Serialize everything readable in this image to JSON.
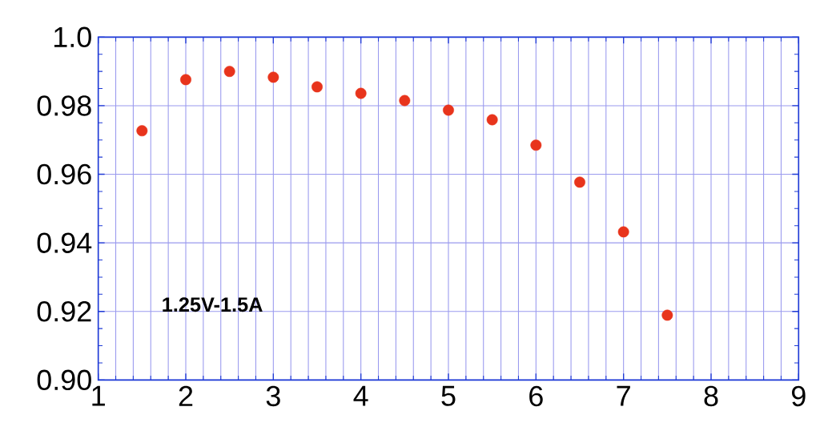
{
  "chart_data": {
    "type": "scatter",
    "x": [
      1.5,
      2,
      2.5,
      3,
      3.5,
      4,
      4.5,
      5,
      5.5,
      6,
      6.5,
      7,
      7.5
    ],
    "values": [
      0.9727,
      0.9876,
      0.99,
      0.9883,
      0.9855,
      0.9836,
      0.9815,
      0.9787,
      0.9759,
      0.9685,
      0.9577,
      0.9432,
      0.9189
    ],
    "color": "#e8341c",
    "xlim": [
      1,
      9
    ],
    "xticks": [
      1,
      2,
      3,
      4,
      5,
      6,
      7,
      8,
      9
    ],
    "ylim": [
      0.9,
      1.0
    ],
    "yticks": [
      {
        "value": 0.9,
        "label": "0.90"
      },
      {
        "value": 0.92,
        "label": "0.92"
      },
      {
        "value": 0.94,
        "label": "0.94"
      },
      {
        "value": 0.96,
        "label": "0.96"
      },
      {
        "value": 0.98,
        "label": "0.98"
      },
      {
        "value": 1.0,
        "label": "1.0"
      }
    ],
    "grid": true,
    "annotations": [
      "1.25V-1.5A"
    ]
  }
}
